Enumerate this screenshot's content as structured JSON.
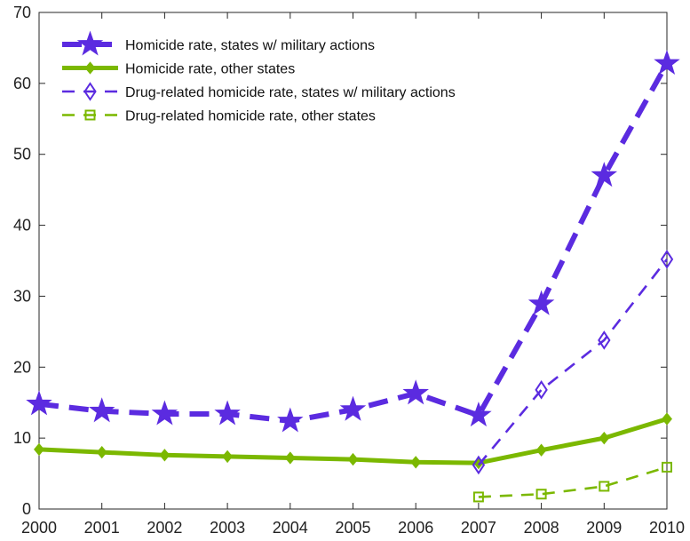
{
  "chart_data": {
    "type": "line",
    "x": [
      2000,
      2001,
      2002,
      2003,
      2004,
      2005,
      2006,
      2007,
      2008,
      2009,
      2010
    ],
    "xticks": [
      "2000",
      "2001",
      "2002",
      "2003",
      "2004",
      "2005",
      "2006",
      "2007",
      "2008",
      "2009",
      "2010"
    ],
    "xlim": [
      2000,
      2010
    ],
    "ylim": [
      0,
      70
    ],
    "yticks": [
      "0",
      "10",
      "20",
      "30",
      "40",
      "50",
      "60",
      "70"
    ],
    "ytick_values": [
      0,
      10,
      20,
      30,
      40,
      50,
      60,
      70
    ],
    "grid": false,
    "legend_position": "top-left",
    "series": [
      {
        "name": "Homicide rate, states w/ military actions",
        "color": "#5b2be0",
        "marker": "star",
        "line": "thick-dashed",
        "x": [
          2000,
          2001,
          2002,
          2003,
          2004,
          2005,
          2006,
          2007,
          2008,
          2009,
          2010
        ],
        "values": [
          14.8,
          13.8,
          13.4,
          13.4,
          12.4,
          14.0,
          16.3,
          13.2,
          28.9,
          47.0,
          62.8
        ]
      },
      {
        "name": "Homicide rate, other states",
        "color": "#7bb800",
        "marker": "small-diamond",
        "line": "thick-solid",
        "x": [
          2000,
          2001,
          2002,
          2003,
          2004,
          2005,
          2006,
          2007,
          2008,
          2009,
          2010
        ],
        "values": [
          8.4,
          8.0,
          7.6,
          7.4,
          7.2,
          7.0,
          6.6,
          6.5,
          8.3,
          10.0,
          12.7
        ]
      },
      {
        "name": "Drug-related homicide rate, states w/ military actions",
        "color": "#5b2be0",
        "marker": "open-diamond",
        "line": "thin-dashed",
        "x": [
          2007,
          2008,
          2009,
          2010
        ],
        "values": [
          6.2,
          16.8,
          23.8,
          35.2
        ]
      },
      {
        "name": "Drug-related homicide rate, other states",
        "color": "#7bb800",
        "marker": "open-square",
        "line": "thin-dashed",
        "x": [
          2007,
          2008,
          2009,
          2010
        ],
        "values": [
          1.7,
          2.1,
          3.2,
          5.9
        ]
      }
    ]
  }
}
